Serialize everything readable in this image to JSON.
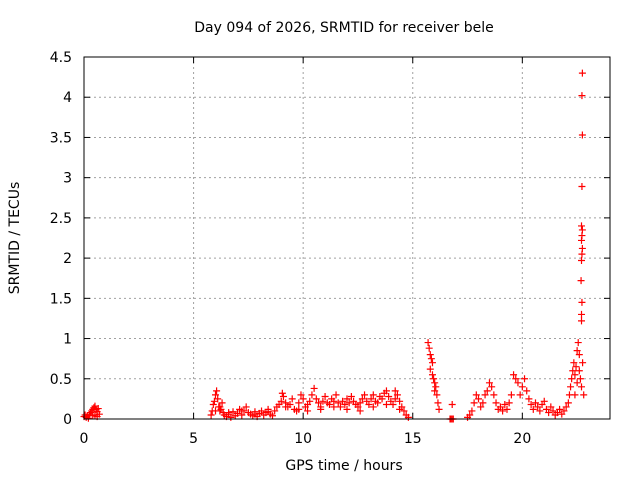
{
  "chart_data": {
    "type": "scatter",
    "title": "Day 094 of 2026, SRMTID for receiver bele",
    "xlabel": "GPS time / hours",
    "ylabel": "SRMTID / TECUs",
    "xlim": [
      0,
      24
    ],
    "ylim": [
      0,
      4.5
    ],
    "xticks": [
      0,
      5,
      10,
      15,
      20
    ],
    "yticks": [
      0,
      0.5,
      1,
      1.5,
      2,
      2.5,
      3,
      3.5,
      4,
      4.5
    ],
    "ytick_labels": [
      "0",
      "0.5",
      "1",
      "1.5",
      "2",
      "2.5",
      "3",
      "3.5",
      "4",
      "4.5"
    ],
    "grid": true,
    "marker": "+",
    "color": "#ff0000",
    "series": [
      {
        "name": "bele",
        "points": [
          [
            0.0,
            0.03
          ],
          [
            0.05,
            0.05
          ],
          [
            0.1,
            0.02
          ],
          [
            0.15,
            0.04
          ],
          [
            0.2,
            0.01
          ],
          [
            0.25,
            0.06
          ],
          [
            0.3,
            0.08
          ],
          [
            0.35,
            0.1
          ],
          [
            0.4,
            0.12
          ],
          [
            0.45,
            0.14
          ],
          [
            0.5,
            0.16
          ],
          [
            0.55,
            0.12
          ],
          [
            0.6,
            0.09
          ],
          [
            0.65,
            0.13
          ],
          [
            0.7,
            0.06
          ],
          [
            0.4,
            0.04
          ],
          [
            0.5,
            0.05
          ],
          [
            0.6,
            0.03
          ],
          [
            5.8,
            0.05
          ],
          [
            5.85,
            0.1
          ],
          [
            5.9,
            0.18
          ],
          [
            5.95,
            0.22
          ],
          [
            6.0,
            0.3
          ],
          [
            6.05,
            0.35
          ],
          [
            6.1,
            0.25
          ],
          [
            6.15,
            0.15
          ],
          [
            6.2,
            0.1
          ],
          [
            6.25,
            0.12
          ],
          [
            6.3,
            0.2
          ],
          [
            6.35,
            0.08
          ],
          [
            6.4,
            0.05
          ],
          [
            6.5,
            0.03
          ],
          [
            6.6,
            0.06
          ],
          [
            6.7,
            0.02
          ],
          [
            6.8,
            0.09
          ],
          [
            6.9,
            0.04
          ],
          [
            7.0,
            0.07
          ],
          [
            7.1,
            0.12
          ],
          [
            7.2,
            0.05
          ],
          [
            7.3,
            0.1
          ],
          [
            7.4,
            0.15
          ],
          [
            7.5,
            0.08
          ],
          [
            7.6,
            0.06
          ],
          [
            7.7,
            0.04
          ],
          [
            7.8,
            0.09
          ],
          [
            7.9,
            0.03
          ],
          [
            8.0,
            0.07
          ],
          [
            8.1,
            0.1
          ],
          [
            8.2,
            0.05
          ],
          [
            8.3,
            0.08
          ],
          [
            8.4,
            0.12
          ],
          [
            8.5,
            0.06
          ],
          [
            8.6,
            0.04
          ],
          [
            8.7,
            0.1
          ],
          [
            8.8,
            0.15
          ],
          [
            8.9,
            0.18
          ],
          [
            9.0,
            0.22
          ],
          [
            9.05,
            0.32
          ],
          [
            9.1,
            0.28
          ],
          [
            9.2,
            0.2
          ],
          [
            9.3,
            0.15
          ],
          [
            9.4,
            0.18
          ],
          [
            9.5,
            0.25
          ],
          [
            9.6,
            0.12
          ],
          [
            9.7,
            0.1
          ],
          [
            9.8,
            0.2
          ],
          [
            9.9,
            0.3
          ],
          [
            10.0,
            0.25
          ],
          [
            10.1,
            0.15
          ],
          [
            10.2,
            0.18
          ],
          [
            10.3,
            0.22
          ],
          [
            10.4,
            0.3
          ],
          [
            10.5,
            0.38
          ],
          [
            10.6,
            0.25
          ],
          [
            10.7,
            0.2
          ],
          [
            10.8,
            0.15
          ],
          [
            10.9,
            0.22
          ],
          [
            11.0,
            0.28
          ],
          [
            11.1,
            0.2
          ],
          [
            11.2,
            0.18
          ],
          [
            11.3,
            0.25
          ],
          [
            11.4,
            0.22
          ],
          [
            11.5,
            0.3
          ],
          [
            11.6,
            0.2
          ],
          [
            11.7,
            0.15
          ],
          [
            11.8,
            0.22
          ],
          [
            11.9,
            0.18
          ],
          [
            12.0,
            0.25
          ],
          [
            12.1,
            0.2
          ],
          [
            12.2,
            0.28
          ],
          [
            12.3,
            0.22
          ],
          [
            12.4,
            0.18
          ],
          [
            12.5,
            0.15
          ],
          [
            12.6,
            0.2
          ],
          [
            12.7,
            0.25
          ],
          [
            12.8,
            0.3
          ],
          [
            12.9,
            0.22
          ],
          [
            13.0,
            0.18
          ],
          [
            13.1,
            0.25
          ],
          [
            13.2,
            0.3
          ],
          [
            13.3,
            0.22
          ],
          [
            13.4,
            0.2
          ],
          [
            13.5,
            0.28
          ],
          [
            13.6,
            0.25
          ],
          [
            13.7,
            0.32
          ],
          [
            13.8,
            0.35
          ],
          [
            13.9,
            0.28
          ],
          [
            14.0,
            0.22
          ],
          [
            14.1,
            0.18
          ],
          [
            14.2,
            0.25
          ],
          [
            14.3,
            0.3
          ],
          [
            14.4,
            0.22
          ],
          [
            14.5,
            0.15
          ],
          [
            14.6,
            0.1
          ],
          [
            14.7,
            0.05
          ],
          [
            14.8,
            0.02
          ],
          [
            6.0,
            0.1
          ],
          [
            6.2,
            0.15
          ],
          [
            6.6,
            0.08
          ],
          [
            7.2,
            0.1
          ],
          [
            7.8,
            0.06
          ],
          [
            8.4,
            0.09
          ],
          [
            9.2,
            0.15
          ],
          [
            9.8,
            0.12
          ],
          [
            10.2,
            0.1
          ],
          [
            10.8,
            0.12
          ],
          [
            11.4,
            0.15
          ],
          [
            12.0,
            0.12
          ],
          [
            12.6,
            0.1
          ],
          [
            13.2,
            0.15
          ],
          [
            13.8,
            0.18
          ],
          [
            14.4,
            0.12
          ],
          [
            14.2,
            0.35
          ],
          [
            15.7,
            0.95
          ],
          [
            15.75,
            0.88
          ],
          [
            15.8,
            0.8
          ],
          [
            15.85,
            0.75
          ],
          [
            15.9,
            0.7
          ],
          [
            15.95,
            0.5
          ],
          [
            16.0,
            0.45
          ],
          [
            16.05,
            0.4
          ],
          [
            16.1,
            0.3
          ],
          [
            16.15,
            0.2
          ],
          [
            16.2,
            0.12
          ],
          [
            15.8,
            0.62
          ],
          [
            15.9,
            0.55
          ],
          [
            16.0,
            0.35
          ],
          [
            16.7,
            0.0
          ],
          [
            16.75,
            0.0
          ],
          [
            16.8,
            0.0
          ],
          [
            16.85,
            0.0
          ],
          [
            16.8,
            0.18
          ],
          [
            17.5,
            0.02
          ],
          [
            17.6,
            0.05
          ],
          [
            17.7,
            0.1
          ],
          [
            17.8,
            0.2
          ],
          [
            17.9,
            0.3
          ],
          [
            18.0,
            0.25
          ],
          [
            18.1,
            0.15
          ],
          [
            18.2,
            0.2
          ],
          [
            18.3,
            0.3
          ],
          [
            18.4,
            0.35
          ],
          [
            18.5,
            0.45
          ],
          [
            18.6,
            0.4
          ],
          [
            18.7,
            0.3
          ],
          [
            18.8,
            0.2
          ],
          [
            18.9,
            0.12
          ],
          [
            19.0,
            0.15
          ],
          [
            19.1,
            0.1
          ],
          [
            19.2,
            0.18
          ],
          [
            19.3,
            0.12
          ],
          [
            19.4,
            0.2
          ],
          [
            19.5,
            0.3
          ],
          [
            19.6,
            0.55
          ],
          [
            19.7,
            0.5
          ],
          [
            19.8,
            0.45
          ],
          [
            19.9,
            0.3
          ],
          [
            20.0,
            0.4
          ],
          [
            20.1,
            0.5
          ],
          [
            20.2,
            0.35
          ],
          [
            20.3,
            0.25
          ],
          [
            20.4,
            0.18
          ],
          [
            20.5,
            0.12
          ],
          [
            20.6,
            0.2
          ],
          [
            20.7,
            0.15
          ],
          [
            20.8,
            0.1
          ],
          [
            20.9,
            0.18
          ],
          [
            21.0,
            0.22
          ],
          [
            21.1,
            0.12
          ],
          [
            21.2,
            0.08
          ],
          [
            21.3,
            0.15
          ],
          [
            21.4,
            0.1
          ],
          [
            21.5,
            0.05
          ],
          [
            21.6,
            0.08
          ],
          [
            21.7,
            0.12
          ],
          [
            21.8,
            0.06
          ],
          [
            21.9,
            0.1
          ],
          [
            22.0,
            0.15
          ],
          [
            22.1,
            0.2
          ],
          [
            22.15,
            0.3
          ],
          [
            22.2,
            0.4
          ],
          [
            22.25,
            0.5
          ],
          [
            22.3,
            0.6
          ],
          [
            22.35,
            0.7
          ],
          [
            22.4,
            0.55
          ],
          [
            22.45,
            0.65
          ],
          [
            22.5,
            0.85
          ],
          [
            22.55,
            0.95
          ],
          [
            22.6,
            0.8
          ],
          [
            22.65,
            0.5
          ],
          [
            22.7,
            0.4
          ],
          [
            22.75,
            0.7
          ],
          [
            22.8,
            0.3
          ],
          [
            22.6,
            0.6
          ],
          [
            22.5,
            0.45
          ],
          [
            22.4,
            0.3
          ],
          [
            22.7,
            1.22
          ],
          [
            22.7,
            1.3
          ],
          [
            22.72,
            1.45
          ],
          [
            22.68,
            1.72
          ],
          [
            22.7,
            1.97
          ],
          [
            22.72,
            2.05
          ],
          [
            22.74,
            2.12
          ],
          [
            22.7,
            2.22
          ],
          [
            22.72,
            2.28
          ],
          [
            22.74,
            2.35
          ],
          [
            22.7,
            2.4
          ],
          [
            22.72,
            2.89
          ],
          [
            22.74,
            3.53
          ],
          [
            22.72,
            4.02
          ],
          [
            22.74,
            4.3
          ]
        ]
      }
    ]
  }
}
